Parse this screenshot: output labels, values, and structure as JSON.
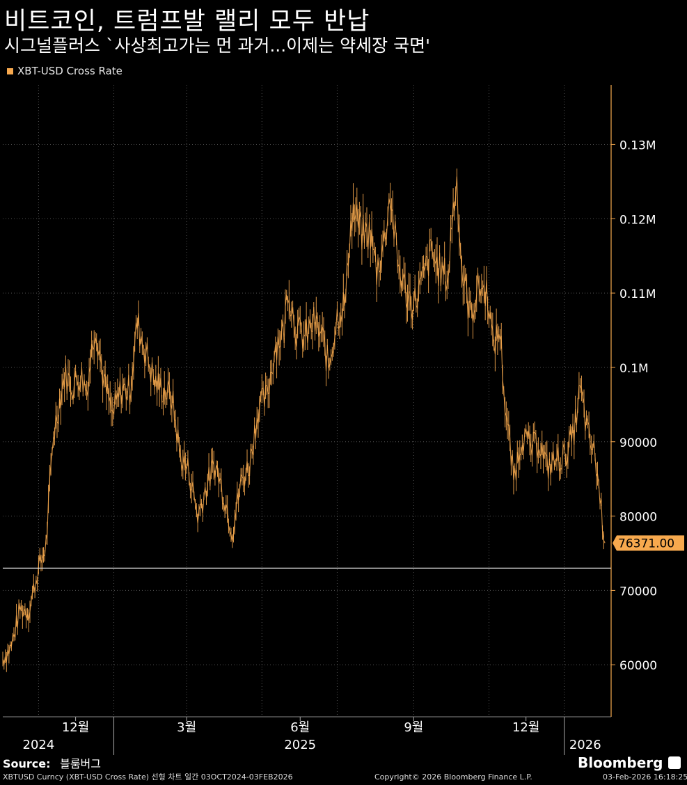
{
  "header": {
    "title": "비트코인, 트럼프발 랠리 모두 반납",
    "subtitle": "시그널플러스 `사상최고가는 먼 과거...이제는 약세장 국면'"
  },
  "chart_data": {
    "type": "line",
    "series": [
      {
        "name": "XBT-USD Cross Rate",
        "color": "#f7a94e",
        "points": [
          [
            "2024-10-03",
            60800
          ],
          [
            "2024-10-10",
            62500
          ],
          [
            "2024-10-17",
            67500
          ],
          [
            "2024-10-24",
            67200
          ],
          [
            "2024-10-31",
            72300
          ],
          [
            "2024-11-07",
            76000
          ],
          [
            "2024-11-13",
            91000
          ],
          [
            "2024-11-22",
            99000
          ],
          [
            "2024-11-29",
            97500
          ],
          [
            "2024-12-05",
            99000
          ],
          [
            "2024-12-10",
            97000
          ],
          [
            "2024-12-17",
            106000
          ],
          [
            "2024-12-24",
            98000
          ],
          [
            "2024-12-31",
            93500
          ],
          [
            "2025-01-07",
            97000
          ],
          [
            "2025-01-14",
            97000
          ],
          [
            "2025-01-20",
            106000
          ],
          [
            "2025-01-27",
            102000
          ],
          [
            "2025-02-03",
            98000
          ],
          [
            "2025-02-10",
            97000
          ],
          [
            "2025-02-17",
            96000
          ],
          [
            "2025-02-24",
            88000
          ],
          [
            "2025-03-03",
            86000
          ],
          [
            "2025-03-10",
            80000
          ],
          [
            "2025-03-17",
            84000
          ],
          [
            "2025-03-24",
            87000
          ],
          [
            "2025-03-31",
            83000
          ],
          [
            "2025-04-07",
            78000
          ],
          [
            "2025-04-14",
            84500
          ],
          [
            "2025-04-21",
            87000
          ],
          [
            "2025-04-28",
            94500
          ],
          [
            "2025-05-05",
            96000
          ],
          [
            "2025-05-12",
            103000
          ],
          [
            "2025-05-19",
            105000
          ],
          [
            "2025-05-22",
            111000
          ],
          [
            "2025-05-29",
            105000
          ],
          [
            "2025-06-05",
            104000
          ],
          [
            "2025-06-12",
            106000
          ],
          [
            "2025-06-19",
            104000
          ],
          [
            "2025-06-24",
            100000
          ],
          [
            "2025-07-01",
            107000
          ],
          [
            "2025-07-08",
            109000
          ],
          [
            "2025-07-11",
            118000
          ],
          [
            "2025-07-14",
            121000
          ],
          [
            "2025-07-21",
            118000
          ],
          [
            "2025-07-28",
            118000
          ],
          [
            "2025-08-02",
            113000
          ],
          [
            "2025-08-08",
            117000
          ],
          [
            "2025-08-13",
            123500
          ],
          [
            "2025-08-19",
            114000
          ],
          [
            "2025-08-26",
            110000
          ],
          [
            "2025-09-01",
            108500
          ],
          [
            "2025-09-08",
            111500
          ],
          [
            "2025-09-15",
            115500
          ],
          [
            "2025-09-22",
            113000
          ],
          [
            "2025-09-29",
            112000
          ],
          [
            "2025-10-02",
            120000
          ],
          [
            "2025-10-06",
            125000
          ],
          [
            "2025-10-10",
            113000
          ],
          [
            "2025-10-17",
            107000
          ],
          [
            "2025-10-24",
            111000
          ],
          [
            "2025-10-31",
            110000
          ],
          [
            "2025-11-04",
            103000
          ],
          [
            "2025-11-10",
            105000
          ],
          [
            "2025-11-14",
            95000
          ],
          [
            "2025-11-21",
            85000
          ],
          [
            "2025-11-28",
            91000
          ],
          [
            "2025-12-05",
            89000
          ],
          [
            "2025-12-12",
            90000
          ],
          [
            "2025-12-18",
            86500
          ],
          [
            "2025-12-25",
            87500
          ],
          [
            "2026-01-01",
            88000
          ],
          [
            "2026-01-08",
            90500
          ],
          [
            "2026-01-14",
            97000
          ],
          [
            "2026-01-20",
            91000
          ],
          [
            "2026-01-26",
            88000
          ],
          [
            "2026-01-29",
            84000
          ],
          [
            "2026-02-02",
            78000
          ],
          [
            "2026-02-03",
            76371
          ]
        ]
      }
    ],
    "reference_line": 73000,
    "last_value_label": "76371.00",
    "y_axis": {
      "ticks": [
        60000,
        70000,
        80000,
        90000,
        100000,
        110000,
        120000,
        130000
      ],
      "tick_labels": [
        "60000",
        "70000",
        "80000",
        "90000",
        "0.1M",
        "0.11M",
        "0.12M",
        "0.13M"
      ],
      "ylim": [
        53000,
        138000
      ]
    },
    "x_axis": {
      "xlim": [
        "2024-10-03",
        "2026-02-08"
      ],
      "month_ticks": [
        {
          "date": "2024-12-01",
          "label": "12월"
        },
        {
          "date": "2025-03-01",
          "label": "3월"
        },
        {
          "date": "2025-06-01",
          "label": "6월"
        },
        {
          "date": "2025-09-01",
          "label": "9월"
        },
        {
          "date": "2025-12-01",
          "label": "12월"
        }
      ],
      "year_labels": [
        {
          "date": "2024-11-01",
          "label": "2024"
        },
        {
          "date": "2025-06-01",
          "label": "2025"
        },
        {
          "date": "2026-01-18",
          "label": "2026"
        }
      ],
      "year_separators": [
        "2025-01-01",
        "2026-01-01"
      ],
      "grid_dates": [
        "2024-11-01",
        "2025-01-01",
        "2025-03-01",
        "2025-05-01",
        "2025-07-01",
        "2025-09-01",
        "2025-11-01",
        "2026-01-01"
      ]
    },
    "grid": true,
    "legend": "top-left",
    "axis_color": "#f7a94e",
    "grid_color": "#555555",
    "background": "#000000"
  },
  "footer": {
    "source_label": "Source:",
    "source_value": "블룸버그",
    "brand": "Bloomberg",
    "footnote": "XBTUSD Curncy (XBT-USD Cross Rate) 선형 차트 일간 03OCT2024-03FEB2026",
    "copyright": "Copyright© 2026 Bloomberg Finance L.P.",
    "timestamp": "03-Feb-2026 16:18:25"
  }
}
